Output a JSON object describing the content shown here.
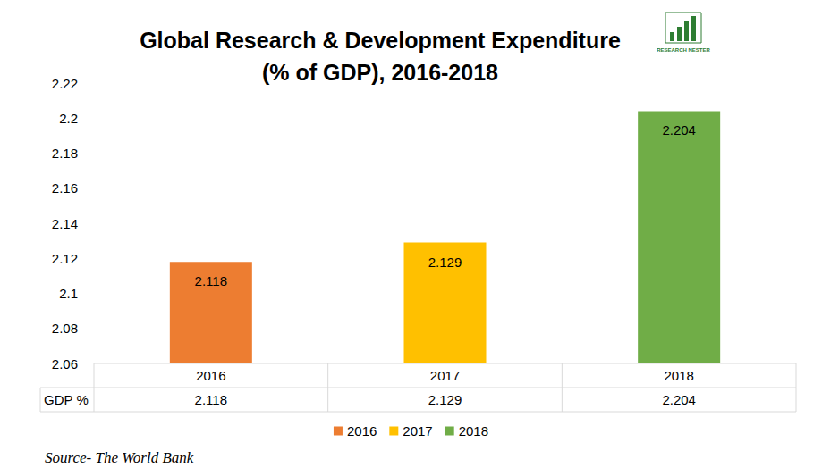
{
  "chart_data": {
    "type": "bar",
    "title": "Global Research & Development Expenditure\n(% of GDP), 2016-2018",
    "categories": [
      "2016",
      "2017",
      "2018"
    ],
    "values": [
      2.118,
      2.129,
      2.204
    ],
    "colors": [
      "#ed7d31",
      "#ffc000",
      "#70ad47"
    ],
    "series_name": "GDP %",
    "ylim": [
      2.06,
      2.22
    ],
    "yticks": [
      2.06,
      2.08,
      2.1,
      2.12,
      2.14,
      2.16,
      2.18,
      2.2,
      2.22
    ],
    "grid": false,
    "data_labels": true,
    "legend": "bottom",
    "annotations": [
      "Source- The World Bank",
      "RESEARCH NESTER"
    ]
  }
}
